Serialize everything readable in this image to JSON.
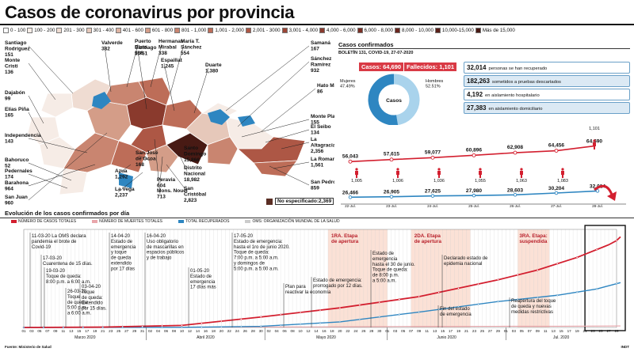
{
  "title": "Casos de coronavirus por provincia",
  "legend": [
    {
      "label": "0 - 100",
      "color": "#ffffff"
    },
    {
      "label": "100 - 200",
      "color": "#f6ece6"
    },
    {
      "label": "201 - 300",
      "color": "#efdcd2"
    },
    {
      "label": "301 - 400",
      "color": "#e6c8ba"
    },
    {
      "label": "401 - 600",
      "color": "#ddb3a2"
    },
    {
      "label": "601 - 800",
      "color": "#d49d88"
    },
    {
      "label": "801 - 1,000",
      "color": "#c98570"
    },
    {
      "label": "1,001 - 2,000",
      "color": "#bd6d58"
    },
    {
      "label": "2,001 - 3000",
      "color": "#ad5745"
    },
    {
      "label": "3,001 - 4,000",
      "color": "#9c4636"
    },
    {
      "label": "4,000 - 6,000",
      "color": "#8a3a2d"
    },
    {
      "label": "6,000 - 8,000",
      "color": "#7a2f25"
    },
    {
      "label": "8,000 - 10,000",
      "color": "#6b271f"
    },
    {
      "label": "10,000-15,000",
      "color": "#5a2019"
    },
    {
      "label": "Más de 15,000",
      "color": "#481a14"
    }
  ],
  "provinces": [
    {
      "name": "Santiago Rodríguez",
      "value": "151"
    },
    {
      "name": "Monte Cristi",
      "value": "136"
    },
    {
      "name": "Dajabón",
      "value": "99"
    },
    {
      "name": "Elías Piña",
      "value": "165"
    },
    {
      "name": "Independencia",
      "value": "143"
    },
    {
      "name": "Bahoruco",
      "value": "52"
    },
    {
      "name": "Pedernales",
      "value": "174"
    },
    {
      "name": "Barahona",
      "value": "964"
    },
    {
      "name": "San Juan",
      "value": "960"
    },
    {
      "name": "Valverde",
      "value": "382"
    },
    {
      "name": "Santiago",
      "value": "5,751"
    },
    {
      "name": "Puerto Plata",
      "value": "966"
    },
    {
      "name": "Hermanas Mirabal",
      "value": "338"
    },
    {
      "name": "María T. Sánchez",
      "value": "554"
    },
    {
      "name": "Espaillat",
      "value": "1,245"
    },
    {
      "name": "Duarte",
      "value": "1,380"
    },
    {
      "name": "Samaná",
      "value": "167"
    },
    {
      "name": "Sánchez Ramírez",
      "value": "932"
    },
    {
      "name": "Hato Mayor",
      "value": "86"
    },
    {
      "name": "Monte Plata",
      "value": "155"
    },
    {
      "name": "El Seibo",
      "value": "134"
    },
    {
      "name": "La Altagracia",
      "value": "2,356"
    },
    {
      "name": "La Romana",
      "value": "1,561"
    },
    {
      "name": "San Pedro",
      "value": "859"
    },
    {
      "name": "Santo Domingo",
      "value": "15,866"
    },
    {
      "name": "Distrito Nacional",
      "value": "18,982"
    },
    {
      "name": "San Cristóbal",
      "value": "2,823"
    },
    {
      "name": "Azua",
      "value": "1,292"
    },
    {
      "name": "La Vega",
      "value": "2,237"
    },
    {
      "name": "San José de Ocoa",
      "value": "168"
    },
    {
      "name": "Peravia",
      "value": "604"
    },
    {
      "name": "Mons. Nouel",
      "value": "713"
    }
  ],
  "no_especificado": {
    "label": "No especificado:",
    "value": "2,369"
  },
  "casos": {
    "heading": "Casos confirmados",
    "boletin": "BOLETÍN 131, COVID-19, 27-07-2020",
    "casos_label": "Casos: 64,690",
    "fallecidos_label": "Fallecidos: 1,101",
    "donut_center": "Casos",
    "mujeres_label": "Mujeres",
    "mujeres_pct": "47.49%",
    "hombres_label": "Hombres",
    "hombres_pct": "52.51%",
    "mujeres_value": 47.49,
    "hombres_value": 52.51
  },
  "stats": [
    {
      "value": "32,014",
      "text": "personas se han recuperado"
    },
    {
      "value": "182,263",
      "text": "sometidos a pruebas descartados"
    },
    {
      "value": "4,192",
      "text": "en aislamiento hospitalario"
    },
    {
      "value": "27,383",
      "text": "en aislamiento domiciliario"
    }
  ],
  "chart_data": [
    {
      "type": "line",
      "categories": [
        "22-Jul.",
        "23-Jul.",
        "24-Jul.",
        "25-Jul.",
        "26-Jul.",
        "27-Jul.",
        "28-Jul."
      ],
      "series": [
        {
          "values": [
            56043,
            57615,
            59077,
            60896,
            62908,
            64456,
            64690
          ],
          "color": "#d31f2f"
        },
        {
          "values": [
            26466,
            26905,
            27625,
            27980,
            28603,
            30204,
            32014
          ],
          "color": "#2e86c1"
        }
      ],
      "deaths": [
        1005,
        1006,
        1036,
        1055,
        1063,
        1083,
        1101
      ],
      "labels": {
        "cases": [
          "56,043",
          "57,615",
          "59,077",
          "60,896",
          "62,908",
          "64,456",
          "64,690"
        ],
        "recovered": [
          "26,466",
          "26,905",
          "27,625",
          "27,980",
          "28,603",
          "30,204",
          "32,014"
        ],
        "deaths": [
          "1,005",
          "1,006",
          "1,036",
          "1,055",
          "1,063",
          "1,083",
          "1,101"
        ]
      }
    },
    {
      "type": "line",
      "title": "Evolución de los casos confirmados por día",
      "legend": [
        "NÚMERO DE CASOS TOTALES",
        "NÚMERO DE MUERTES TOTALES",
        "TOTAL RECUPERADOS",
        "OMS: ORGANIZACIÓN MUNDIAL DE LA SALUD"
      ],
      "series_colors": [
        "#d31f2f",
        "#e9a6ab",
        "#2e86c1"
      ],
      "x_start": "2020-03-01",
      "x_end": "2020-07-28",
      "cases_points": [
        [
          0,
          0
        ],
        [
          20,
          250
        ],
        [
          40,
          1500
        ],
        [
          60,
          7500
        ],
        [
          80,
          14000
        ],
        [
          100,
          22000
        ],
        [
          120,
          34000
        ],
        [
          130,
          41000
        ],
        [
          140,
          50000
        ],
        [
          148,
          59000
        ],
        [
          150,
          62000
        ],
        [
          151,
          64690
        ]
      ],
      "recovered_points": [
        [
          0,
          0
        ],
        [
          40,
          100
        ],
        [
          60,
          800
        ],
        [
          80,
          4000
        ],
        [
          100,
          11000
        ],
        [
          120,
          18500
        ],
        [
          135,
          23000
        ],
        [
          145,
          27500
        ],
        [
          151,
          32014
        ]
      ],
      "deaths_points": [
        [
          0,
          0
        ],
        [
          40,
          90
        ],
        [
          60,
          300
        ],
        [
          80,
          550
        ],
        [
          100,
          750
        ],
        [
          120,
          850
        ],
        [
          135,
          900
        ],
        [
          151,
          1101
        ]
      ],
      "ylim": [
        0,
        70000
      ],
      "months": [
        "Marzo 2020",
        "Abril 2020",
        "Mayo 2020",
        "Junio 2020",
        "Jul. 2020"
      ]
    }
  ],
  "annotations": [
    {
      "text": "11-03-20 La OMS declara\npandemia el brote de\nCovid-19"
    },
    {
      "text": "17-03-20\nCuarentena de 15 días."
    },
    {
      "text": "19-03-20\nToque de queda:\n8:00 p.m. a 6:00 a.m."
    },
    {
      "text": "26-03-20\nToque\nde queda:\n5:00 p.m.\na 6:00 a.m."
    },
    {
      "text": "03-04-20\nToque\nde queda:\nExtendido\npor 15 días."
    },
    {
      "text": "14-04-20\nEstado de\nemergencia\ny toque\nde queda\nextendido\npor 17 días"
    },
    {
      "text": "16-04-20\nUso obligatorio\nde mascarillas en\nespacios públicos\ny de trabajo"
    },
    {
      "text": "01-05-20\nEstado de\nemergencia\n17 días más"
    },
    {
      "text": "17-05-20\nEstado de emergencia:\nhasta el 1ro de junio 2020.\nToque de queda:\n7:00 p.m. a 5:00 a.m.\ny domingos de\n5:00 p.m. a 5:00 a.m."
    },
    {
      "text": "Plan para\nreactivar la economía"
    },
    {
      "text": "Estado de emergencia:\nprorrogado por 12 días."
    },
    {
      "text": "Estado de\nemergencia\nhasta el 30 de junio.\nToque de queda:\nde 8:00 p.m.\na 5:00 a.m."
    },
    {
      "text": "Declarado estado de\nepidemia nacional"
    },
    {
      "text": "Fin del estado\nde emergencia"
    },
    {
      "text": "Reapertura del toque\nde queda y nuevas\nmedidas restrictivas"
    }
  ],
  "phases": [
    {
      "title": "1RA. Etapa\nde apertura"
    },
    {
      "title": "2DA. Etapa\nde apertura"
    },
    {
      "title": "3RA. Etapa:\nsuspendida"
    }
  ],
  "footer": {
    "source": "Fuente: Ministerio de Salud",
    "credit": "INDT"
  }
}
